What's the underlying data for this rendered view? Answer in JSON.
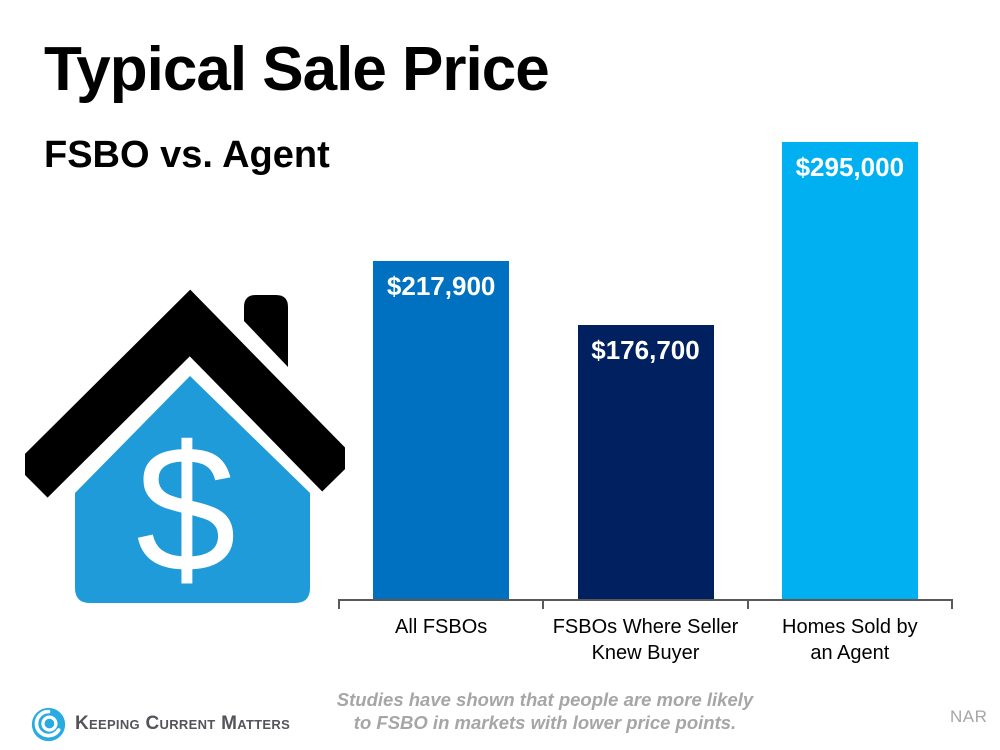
{
  "page": {
    "title": "Typical Sale Price",
    "subtitle": "FSBO vs. Agent",
    "footnote_line1": "Studies have shown that people are more likely",
    "footnote_line2": "to FSBO in markets with lower price points.",
    "source": "NAR",
    "logo_text": "Keeping Current Matters"
  },
  "chart_data": {
    "type": "bar",
    "title": "Typical Sale Price",
    "subtitle": "FSBO vs. Agent",
    "categories": [
      "All FSBOs",
      "FSBOs Where Seller\nKnew Buyer",
      "Homes Sold by\nan Agent"
    ],
    "values": [
      217900,
      176700,
      295000
    ],
    "value_labels": [
      "$217,900",
      "$176,700",
      "$295,000"
    ],
    "series_colors": [
      "#0070C0",
      "#002060",
      "#00B0F0"
    ],
    "ylim": [
      0,
      307000
    ],
    "grid": false,
    "legend": false,
    "xlabel": "",
    "ylabel": "",
    "annotation": "Studies have shown that people are more likely to FSBO in markets with lower price points.",
    "source": "NAR"
  },
  "colors": {
    "bar_all_fsbos": "#0070C0",
    "bar_fsbo_knew_buyer": "#002060",
    "bar_agent": "#00B0F0",
    "house_body_blue": "#1E9BD8",
    "house_roof_black": "#000000",
    "axis_gray": "#595959",
    "footnote_gray": "#A6A6A6",
    "logo_blue": "#29ABE2",
    "logo_text_gray": "#54555A"
  },
  "icons": {
    "house": "house-dollar-icon",
    "logo": "kcm-swirl-icon"
  }
}
